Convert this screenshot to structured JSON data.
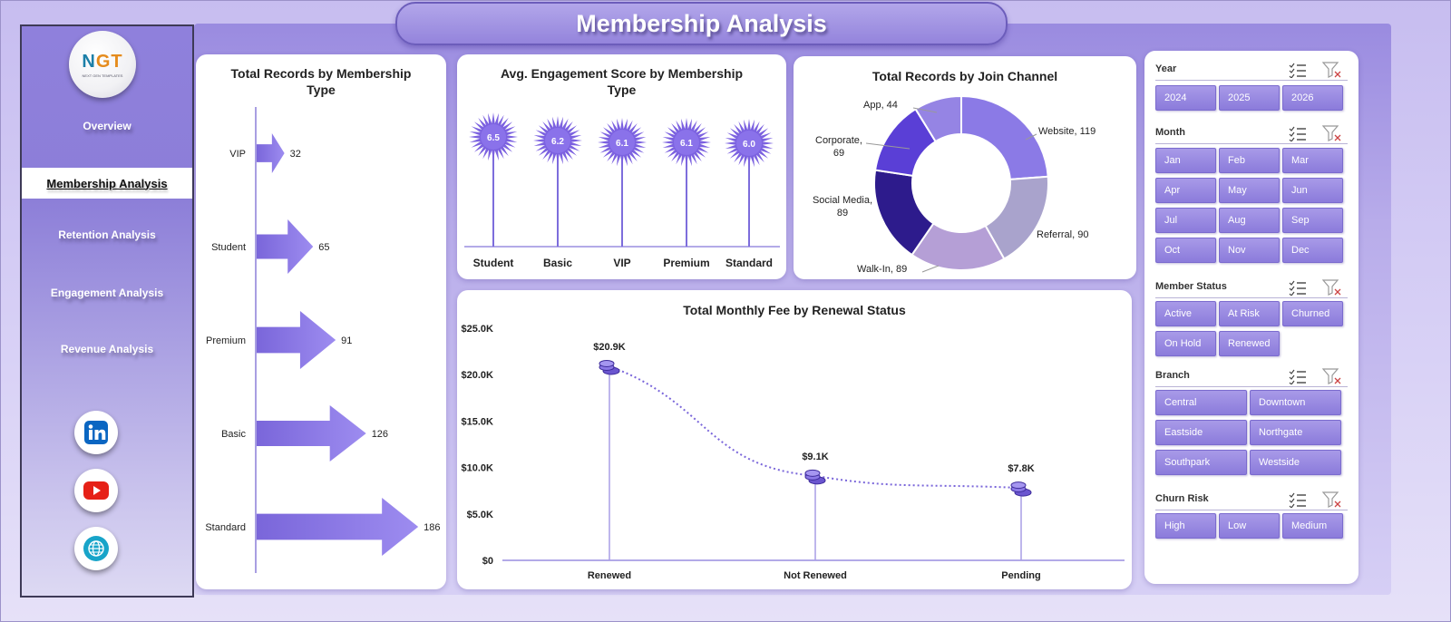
{
  "header": {
    "title": "Membership Analysis"
  },
  "logo": {
    "brand_n": "N",
    "brand_gt": "GT",
    "tagline": "NEXT GEN TEMPLATES"
  },
  "sidebar": {
    "items": [
      {
        "label": "Overview"
      },
      {
        "label": "Membership Analysis"
      },
      {
        "label": "Retention Analysis"
      },
      {
        "label": "Engagement Analysis"
      },
      {
        "label": "Revenue Analysis"
      }
    ],
    "social": [
      "linkedin-icon",
      "youtube-icon",
      "globe-icon"
    ]
  },
  "colors": {
    "accent": "#8b7bdb",
    "dark_accent": "#5a3fd6",
    "band": "#9a8be0"
  },
  "chart_data": [
    {
      "type": "bar",
      "title": "Total Records by Membership Type",
      "orientation": "horizontal",
      "categories": [
        "VIP",
        "Student",
        "Premium",
        "Basic",
        "Standard"
      ],
      "values": [
        32,
        65,
        91,
        126,
        186
      ]
    },
    {
      "type": "scatter",
      "title": "Avg. Engagement Score by Membership Type",
      "categories": [
        "Student",
        "Basic",
        "VIP",
        "Premium",
        "Standard"
      ],
      "values": [
        6.5,
        6.2,
        6.1,
        6.1,
        6.0
      ],
      "value_labels": [
        "6.5",
        "6.2",
        "6.1",
        "6.1",
        "6.0"
      ]
    },
    {
      "type": "pie",
      "title": "Total Records by Join Channel",
      "donut": true,
      "categories": [
        "Website",
        "Referral",
        "Walk-In",
        "Social Media",
        "Corporate",
        "App"
      ],
      "values": [
        119,
        90,
        89,
        89,
        69,
        44
      ],
      "labels": [
        "Website, 119",
        "Referral, 90",
        "Walk-In, 89",
        "Social Media,",
        "89",
        "Corporate,",
        "69",
        "App, 44"
      ],
      "colors": [
        "#8b7ae6",
        "#a9a3cc",
        "#b59fd6",
        "#2d1b8c",
        "#5a3fd6",
        "#9584e4"
      ]
    },
    {
      "type": "line",
      "title": "Total Monthly  Fee by Renewal  Status",
      "categories": [
        "Renewed",
        "Not Renewed",
        "Pending"
      ],
      "values": [
        20900,
        9100,
        7800
      ],
      "value_labels": [
        "$20.9K",
        "$9.1K",
        "$7.8K"
      ],
      "yticks": [
        "$0",
        "$5.0K",
        "$10.0K",
        "$15.0K",
        "$20.0K",
        "$25.0K"
      ],
      "ylim": [
        0,
        25000
      ]
    }
  ],
  "filters": [
    {
      "title": "Year",
      "options": [
        "2024",
        "2025",
        "2026"
      ]
    },
    {
      "title": "Month",
      "options": [
        "Jan",
        "Feb",
        "Mar",
        "Apr",
        "May",
        "Jun",
        "Jul",
        "Aug",
        "Sep",
        "Oct",
        "Nov",
        "Dec"
      ]
    },
    {
      "title": "Member Status",
      "options": [
        "Active",
        "At Risk",
        "Churned",
        "On Hold",
        "Renewed"
      ]
    },
    {
      "title": "Branch",
      "options": [
        "Central",
        "Downtown",
        "Eastside",
        "Northgate",
        "Southpark",
        "Westside"
      ]
    },
    {
      "title": "Churn Risk",
      "options": [
        "High",
        "Low",
        "Medium"
      ]
    }
  ]
}
